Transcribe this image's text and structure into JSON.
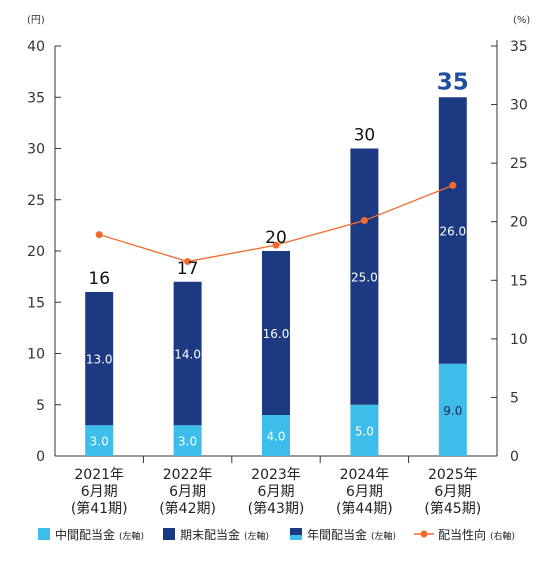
{
  "chart_data": {
    "type": "bar",
    "left_unit": "(円)",
    "right_unit": "(%)",
    "categories": [
      [
        "2021年",
        "6月期",
        "(第41期)"
      ],
      [
        "2022年",
        "6月期",
        "(第42期)"
      ],
      [
        "2023年",
        "6月期",
        "(第43期)"
      ],
      [
        "2024年",
        "6月期",
        "(第44期)"
      ],
      [
        "2025年",
        "6月期",
        "(第45期)"
      ]
    ],
    "y_left": {
      "min": 0,
      "max": 40,
      "ticks": [
        "0",
        "5",
        "10",
        "15",
        "20",
        "25",
        "30",
        "35",
        "40"
      ]
    },
    "y_right": {
      "min": 0,
      "max": 35,
      "ticks": [
        "0",
        "5",
        "10",
        "15",
        "20",
        "25",
        "30",
        "35"
      ]
    },
    "series": [
      {
        "name": "中間配当金",
        "legend_note": "(左軸)",
        "axis": "left",
        "color": "#3dbde9",
        "values": [
          3.0,
          3.0,
          4.0,
          5.0,
          9.0
        ],
        "labels": [
          "3.0",
          "3.0",
          "4.0",
          "5.0",
          "9.0"
        ]
      },
      {
        "name": "期末配当金",
        "legend_note": "(左軸)",
        "axis": "left",
        "color": "#1b3a82",
        "values": [
          13.0,
          14.0,
          16.0,
          25.0,
          26.0
        ],
        "labels": [
          "13.0",
          "14.0",
          "16.0",
          "25.0",
          "26.0"
        ]
      },
      {
        "name": "配当性向",
        "legend_note": "(右軸)",
        "axis": "right",
        "type": "line",
        "color": "#f26b2e",
        "values": [
          18.9,
          16.6,
          18.0,
          20.1,
          23.1
        ]
      }
    ],
    "annual_legend": {
      "name": "年間配当金",
      "legend_note": "(左軸)"
    },
    "totals": [
      16,
      17,
      20,
      30,
      35
    ],
    "total_labels": [
      "16",
      "17",
      "20",
      "30",
      "35"
    ],
    "highlight_color": "#1e4fa0"
  }
}
